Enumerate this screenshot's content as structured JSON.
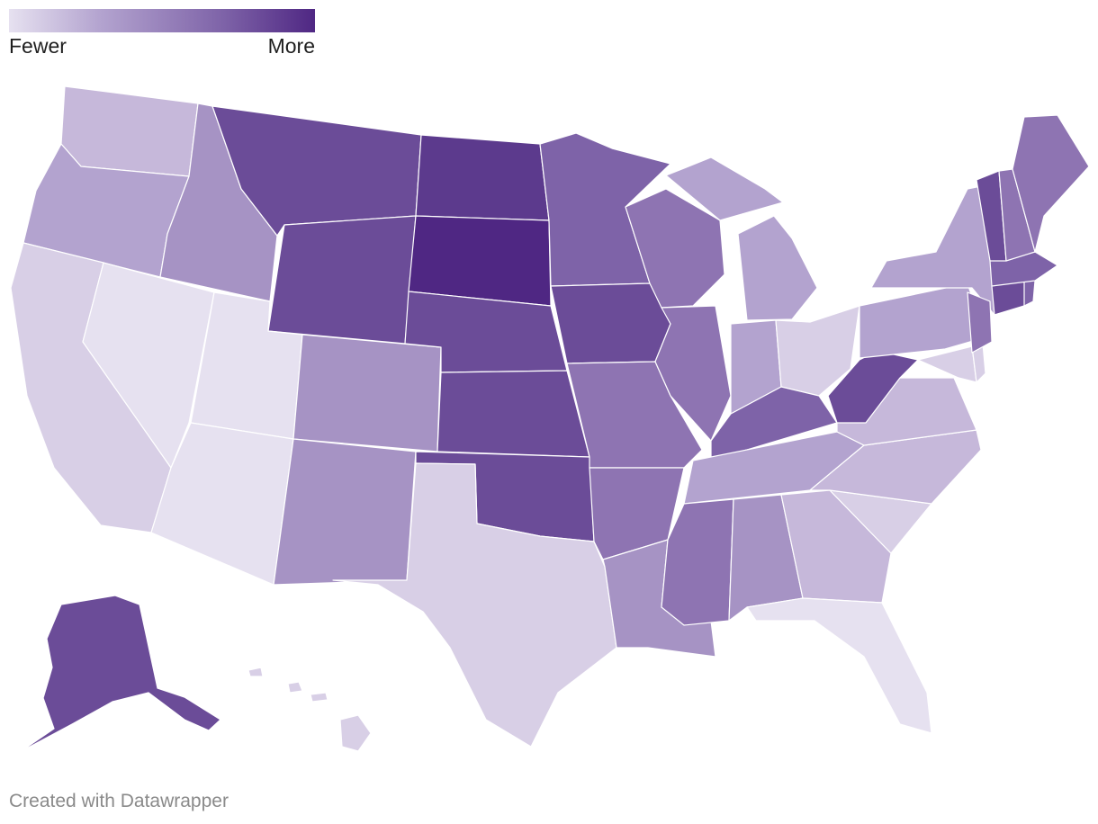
{
  "legend": {
    "low_label": "Fewer",
    "high_label": "More"
  },
  "footer": {
    "credit": "Created with Datawrapper"
  },
  "colors": {
    "scale": [
      "#e6e1f0",
      "#d8cfe6",
      "#c6b8da",
      "#b3a3cf",
      "#a693c4",
      "#8e74b2",
      "#7e63a8",
      "#6b4c98",
      "#5c3a8d",
      "#4f2783"
    ],
    "border": "#ffffff"
  },
  "map_data": {
    "type": "choropleth",
    "region": "United States",
    "states": [
      {
        "id": "WA",
        "level": 2
      },
      {
        "id": "OR",
        "level": 3
      },
      {
        "id": "CA",
        "level": 1
      },
      {
        "id": "NV",
        "level": 0
      },
      {
        "id": "ID",
        "level": 4
      },
      {
        "id": "MT",
        "level": 7
      },
      {
        "id": "WY",
        "level": 7
      },
      {
        "id": "UT",
        "level": 0
      },
      {
        "id": "AZ",
        "level": 0
      },
      {
        "id": "CO",
        "level": 4
      },
      {
        "id": "NM",
        "level": 4
      },
      {
        "id": "ND",
        "level": 8
      },
      {
        "id": "SD",
        "level": 9
      },
      {
        "id": "NE",
        "level": 7
      },
      {
        "id": "KS",
        "level": 7
      },
      {
        "id": "OK",
        "level": 7
      },
      {
        "id": "TX",
        "level": 1
      },
      {
        "id": "MN",
        "level": 6
      },
      {
        "id": "IA",
        "level": 7
      },
      {
        "id": "MO",
        "level": 5
      },
      {
        "id": "AR",
        "level": 5
      },
      {
        "id": "LA",
        "level": 4
      },
      {
        "id": "WI",
        "level": 5
      },
      {
        "id": "IL",
        "level": 5
      },
      {
        "id": "MI",
        "level": 3
      },
      {
        "id": "IN",
        "level": 3
      },
      {
        "id": "OH",
        "level": 1
      },
      {
        "id": "KY",
        "level": 6
      },
      {
        "id": "TN",
        "level": 3
      },
      {
        "id": "MS",
        "level": 5
      },
      {
        "id": "AL",
        "level": 4
      },
      {
        "id": "GA",
        "level": 2
      },
      {
        "id": "FL",
        "level": 0
      },
      {
        "id": "SC",
        "level": 1
      },
      {
        "id": "NC",
        "level": 2
      },
      {
        "id": "VA",
        "level": 2
      },
      {
        "id": "WV",
        "level": 7
      },
      {
        "id": "PA",
        "level": 3
      },
      {
        "id": "NY",
        "level": 3
      },
      {
        "id": "MD",
        "level": 1
      },
      {
        "id": "DE",
        "level": 1
      },
      {
        "id": "NJ",
        "level": 5
      },
      {
        "id": "CT",
        "level": 7
      },
      {
        "id": "RI",
        "level": 6
      },
      {
        "id": "MA",
        "level": 6
      },
      {
        "id": "VT",
        "level": 7
      },
      {
        "id": "NH",
        "level": 5
      },
      {
        "id": "ME",
        "level": 5
      },
      {
        "id": "AK",
        "level": 7
      },
      {
        "id": "HI",
        "level": 1
      }
    ]
  }
}
